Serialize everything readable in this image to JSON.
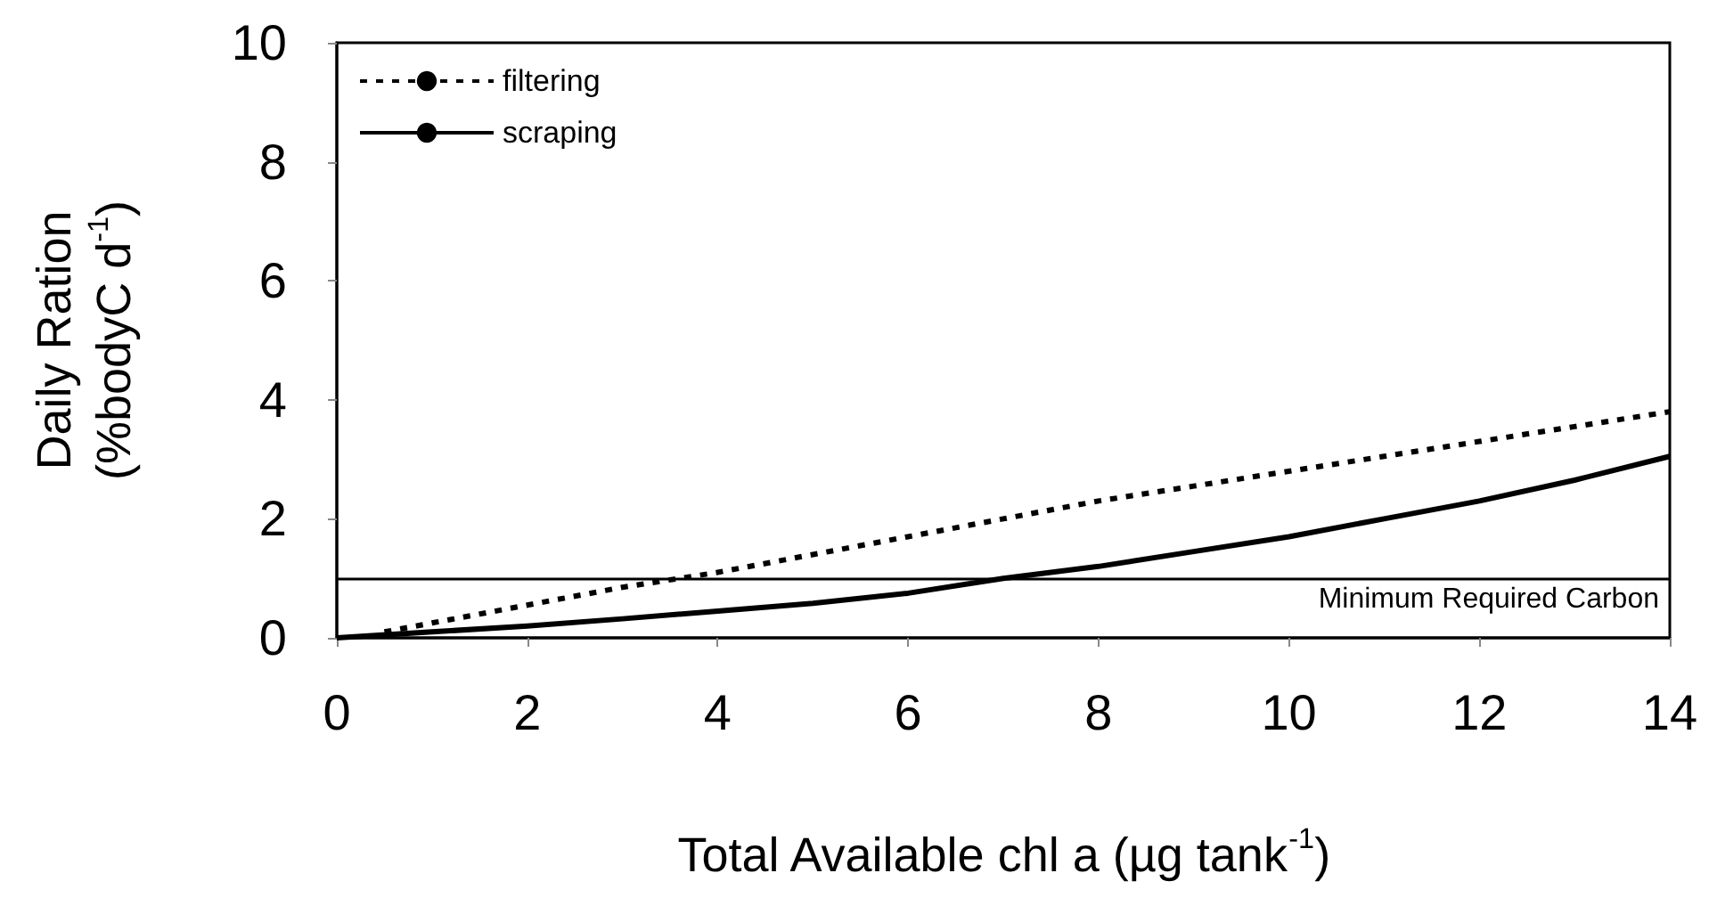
{
  "chart_data": {
    "type": "line",
    "xlabel": "Total Available chl a (µg tank$^{-1}$)",
    "ylabel": "Daily Ration\n(%bodyC d$^{-1}$)",
    "xlim": [
      0,
      14
    ],
    "xticks": [
      0,
      2,
      4,
      6,
      8,
      10,
      12,
      14
    ],
    "ylim": [
      0,
      10
    ],
    "yticks": [
      0,
      2,
      4,
      6,
      8,
      10
    ],
    "grid": false,
    "legend": "top left",
    "marker": "none",
    "series": [
      {
        "name": "filtering",
        "color": "#000000",
        "line_style": "dashed",
        "x": [
          0.5,
          1,
          2,
          3,
          4,
          5,
          6,
          7,
          8,
          9,
          10,
          11,
          12,
          13,
          14
        ],
        "values": [
          0.1,
          0.25,
          0.55,
          0.85,
          1.1,
          1.4,
          1.7,
          2.0,
          2.3,
          2.55,
          2.8,
          3.05,
          3.3,
          3.55,
          3.8
        ]
      },
      {
        "name": "scraping",
        "color": "#000000",
        "line_style": "solid",
        "x": [
          0,
          1,
          2,
          3,
          4,
          5,
          6,
          7,
          8,
          9,
          10,
          11,
          12,
          13,
          14
        ],
        "values": [
          0,
          0.1,
          0.2,
          0.32,
          0.45,
          0.58,
          0.75,
          1.0,
          1.2,
          1.45,
          1.7,
          2.0,
          2.3,
          2.65,
          3.05
        ]
      }
    ],
    "ref_lines": [
      {
        "axis": "y",
        "value": 1,
        "label": "Minimum Required Carbon",
        "color": "#000000",
        "line_style": "solid"
      }
    ]
  }
}
